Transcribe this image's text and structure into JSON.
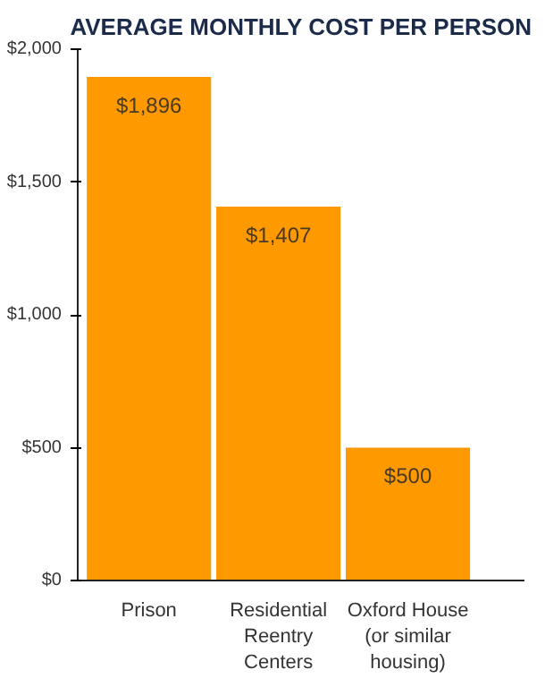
{
  "chart_data": {
    "type": "bar",
    "title": "AVERAGE MONTHLY COST PER PERSON",
    "categories": [
      "Prison",
      "Residential Reentry Centers",
      "Oxford House (or similar housing)"
    ],
    "values": [
      1896,
      1407,
      500
    ],
    "color": "#ff9900",
    "value_labels": [
      "$1,896",
      "$1,407",
      "$500"
    ],
    "ylim": [
      0,
      2000
    ],
    "yticks": [
      {
        "value": 0,
        "label": "$0"
      },
      {
        "value": 500,
        "label": "$500"
      },
      {
        "value": 1000,
        "label": "$1,000"
      },
      {
        "value": 1500,
        "label": "$1,500"
      },
      {
        "value": 2000,
        "label": "$2,000"
      }
    ],
    "grid": false
  }
}
